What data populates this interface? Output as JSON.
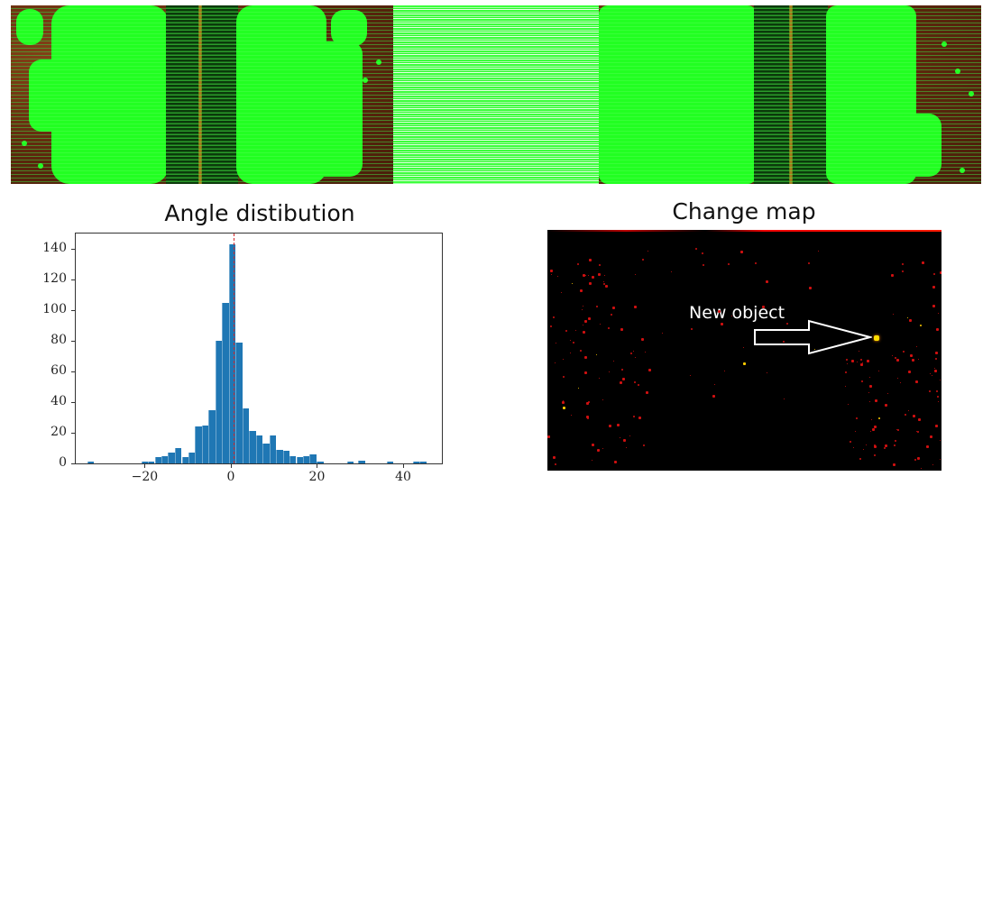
{
  "figure": {
    "top_strip": {
      "description": "Feature matches between two images (left and right) connected by horizontal match lines",
      "colors": {
        "keypoint": "#22ff22",
        "match_line": "#3cff3c",
        "background": "#6b2f10",
        "dark_band": "#0b3a0b"
      }
    },
    "histogram": {
      "title": "Angle distibution"
    },
    "change_map": {
      "title": "Change map",
      "annotation": "New object",
      "colors": {
        "background": "#000000",
        "change": "#d01010",
        "highlight": "#ffdd00",
        "annotation": "#ffffff"
      }
    }
  },
  "chart_data": [
    {
      "type": "bar",
      "title": "Angle distibution",
      "xlabel": "",
      "ylabel": "",
      "xlim": [
        -36,
        49
      ],
      "ylim": [
        0,
        150
      ],
      "xticks": [
        -20,
        0,
        20,
        40
      ],
      "xtick_labels": [
        "−20",
        "0",
        "20",
        "40"
      ],
      "yticks": [
        0,
        20,
        40,
        60,
        80,
        100,
        120,
        140
      ],
      "ytick_labels": [
        "0",
        "20",
        "40",
        "60",
        "80",
        "100",
        "120",
        "140"
      ],
      "grid": false,
      "legend": null,
      "bar_color": "#1f77b4",
      "mean_line": {
        "x": 0.6,
        "style": "dashed",
        "color": "#d62728"
      },
      "bin_width": 1.56,
      "bins": [
        {
          "x": -32.5,
          "count": 1
        },
        {
          "x": -20.0,
          "count": 1
        },
        {
          "x": -18.5,
          "count": 1
        },
        {
          "x": -16.9,
          "count": 4
        },
        {
          "x": -15.3,
          "count": 5
        },
        {
          "x": -13.8,
          "count": 7
        },
        {
          "x": -12.2,
          "count": 10
        },
        {
          "x": -10.6,
          "count": 4
        },
        {
          "x": -9.1,
          "count": 7
        },
        {
          "x": -7.5,
          "count": 24
        },
        {
          "x": -5.9,
          "count": 25
        },
        {
          "x": -4.4,
          "count": 35
        },
        {
          "x": -2.8,
          "count": 80
        },
        {
          "x": -1.2,
          "count": 105
        },
        {
          "x": 0.3,
          "count": 143
        },
        {
          "x": 1.9,
          "count": 79
        },
        {
          "x": 3.5,
          "count": 36
        },
        {
          "x": 5.0,
          "count": 21
        },
        {
          "x": 6.6,
          "count": 18
        },
        {
          "x": 8.2,
          "count": 13
        },
        {
          "x": 9.7,
          "count": 18
        },
        {
          "x": 11.3,
          "count": 9
        },
        {
          "x": 12.9,
          "count": 8
        },
        {
          "x": 14.4,
          "count": 5
        },
        {
          "x": 16.0,
          "count": 4
        },
        {
          "x": 17.5,
          "count": 5
        },
        {
          "x": 19.1,
          "count": 6
        },
        {
          "x": 20.7,
          "count": 1
        },
        {
          "x": 27.7,
          "count": 1
        },
        {
          "x": 30.4,
          "count": 2
        },
        {
          "x": 37.0,
          "count": 1
        },
        {
          "x": 43.0,
          "count": 1
        },
        {
          "x": 44.6,
          "count": 1
        }
      ]
    }
  ]
}
